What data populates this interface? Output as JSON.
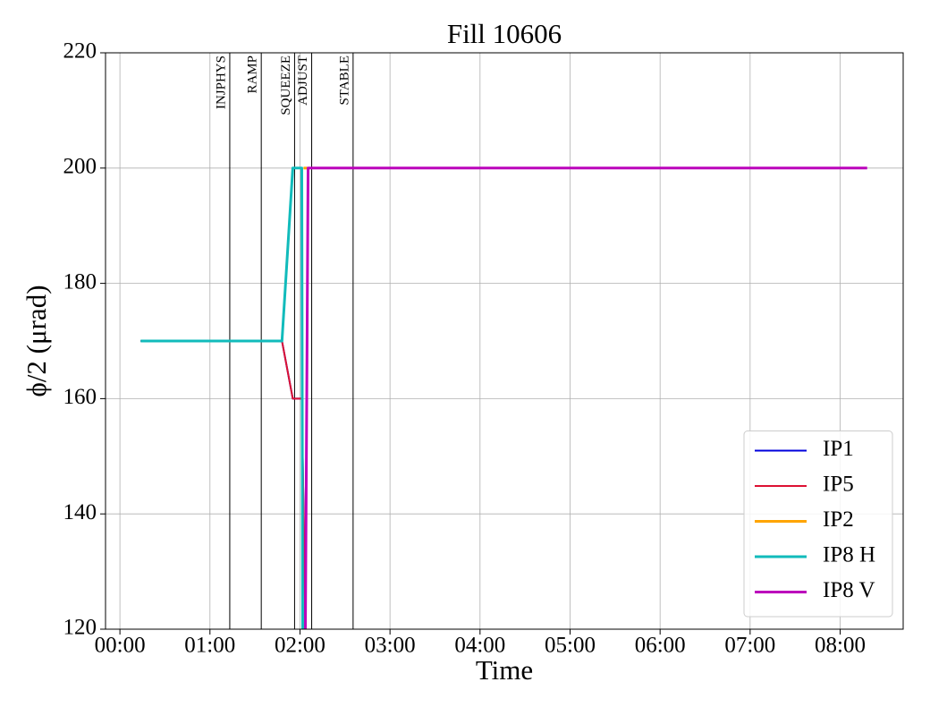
{
  "chart_data": {
    "type": "line",
    "title": "Fill 10606",
    "x_label": "Time",
    "y_label": "ϕ/2 (μrad)",
    "xlim": [
      -0.16,
      8.7
    ],
    "ylim": [
      120,
      220
    ],
    "xticks": [
      {
        "value": 0,
        "label": "00:00"
      },
      {
        "value": 1,
        "label": "01:00"
      },
      {
        "value": 2,
        "label": "02:00"
      },
      {
        "value": 3,
        "label": "03:00"
      },
      {
        "value": 4,
        "label": "04:00"
      },
      {
        "value": 5,
        "label": "05:00"
      },
      {
        "value": 6,
        "label": "06:00"
      },
      {
        "value": 7,
        "label": "07:00"
      },
      {
        "value": 8,
        "label": "08:00"
      }
    ],
    "yticks": [
      120,
      140,
      160,
      180,
      200,
      220
    ],
    "grid": true,
    "legend": "lower right",
    "phases": [
      {
        "label": "INJPHYS",
        "x": 1.22
      },
      {
        "label": "RAMP",
        "x": 1.57
      },
      {
        "label": "SQUEEZE",
        "x": 1.94
      },
      {
        "label": "ADJUST",
        "x": 2.13
      },
      {
        "label": "STABLE",
        "x": 2.59
      }
    ],
    "series": [
      {
        "name": "IP1",
        "color": "#0000dd",
        "width": 2,
        "x": [
          0.23,
          1.8,
          1.92,
          2.02,
          2.06
        ],
        "values": [
          170,
          170,
          160,
          160,
          120
        ]
      },
      {
        "name": "IP5",
        "color": "#dd1133",
        "width": 2,
        "x": [
          0.23,
          1.8,
          1.92,
          2.02,
          2.06
        ],
        "values": [
          170,
          170,
          160,
          160,
          120
        ]
      },
      {
        "name": "IP2",
        "color": "#ffa500",
        "width": 3,
        "x": [
          2.04,
          2.08
        ],
        "values": [
          200,
          200
        ]
      },
      {
        "name": "IP8 H",
        "color": "#11bbbb",
        "width": 3,
        "x": [
          0.23,
          1.8,
          1.92,
          2.02,
          2.03
        ],
        "values": [
          170,
          170,
          200,
          200,
          120
        ]
      },
      {
        "name": "IP8 V",
        "color": "#bb00bb",
        "width": 3,
        "x": [
          2.06,
          2.09,
          8.3
        ],
        "values": [
          120,
          200,
          200
        ]
      }
    ]
  }
}
